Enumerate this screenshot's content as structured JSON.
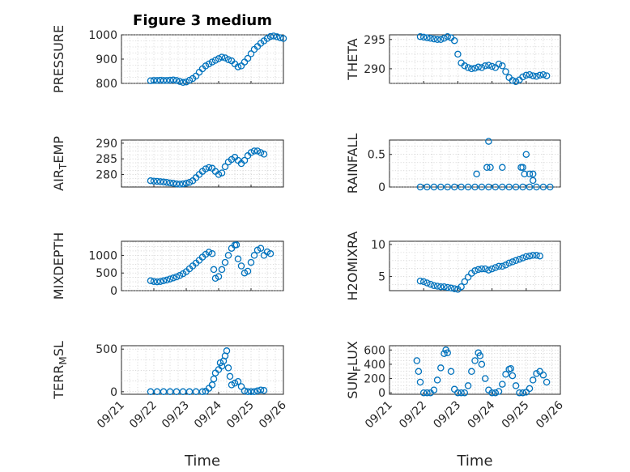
{
  "chart_data": [
    {
      "type": "scatter",
      "panel": "PRESSURE",
      "title": "Figure 3 medium",
      "ylabel": "PRESSURE",
      "ylim": [
        800,
        1000
      ],
      "yticks": [
        800,
        900,
        1000
      ],
      "xlim": [
        "09/21",
        "09/26"
      ],
      "points": [
        [
          0.9,
          811
        ],
        [
          1.0,
          812
        ],
        [
          1.1,
          812
        ],
        [
          1.2,
          813
        ],
        [
          1.3,
          812
        ],
        [
          1.4,
          812
        ],
        [
          1.5,
          813
        ],
        [
          1.6,
          814
        ],
        [
          1.7,
          812
        ],
        [
          1.8,
          808
        ],
        [
          1.9,
          804
        ],
        [
          2.0,
          806
        ],
        [
          2.1,
          813
        ],
        [
          2.2,
          820
        ],
        [
          2.3,
          830
        ],
        [
          2.4,
          846
        ],
        [
          2.5,
          860
        ],
        [
          2.6,
          872
        ],
        [
          2.7,
          880
        ],
        [
          2.8,
          888
        ],
        [
          2.9,
          895
        ],
        [
          3.0,
          902
        ],
        [
          3.1,
          908
        ],
        [
          3.2,
          905
        ],
        [
          3.3,
          898
        ],
        [
          3.4,
          893
        ],
        [
          3.5,
          880
        ],
        [
          3.6,
          868
        ],
        [
          3.7,
          872
        ],
        [
          3.8,
          888
        ],
        [
          3.9,
          903
        ],
        [
          4.0,
          922
        ],
        [
          4.1,
          940
        ],
        [
          4.2,
          952
        ],
        [
          4.3,
          965
        ],
        [
          4.4,
          975
        ],
        [
          4.5,
          985
        ],
        [
          4.6,
          993
        ],
        [
          4.7,
          995
        ],
        [
          4.8,
          992
        ],
        [
          4.9,
          988
        ],
        [
          5.0,
          985
        ]
      ]
    },
    {
      "type": "scatter",
      "panel": "THETA",
      "ylabel": "THETA",
      "ylim": [
        287.5,
        295.8
      ],
      "yticks": [
        290,
        295
      ],
      "xlim": [
        "09/21",
        "09/26"
      ],
      "points": [
        [
          0.9,
          295.5
        ],
        [
          1.0,
          295.4
        ],
        [
          1.1,
          295.3
        ],
        [
          1.2,
          295.2
        ],
        [
          1.3,
          295.1
        ],
        [
          1.4,
          295.0
        ],
        [
          1.5,
          295.0
        ],
        [
          1.6,
          295.2
        ],
        [
          1.7,
          295.5
        ],
        [
          1.8,
          295.3
        ],
        [
          1.9,
          294.8
        ],
        [
          2.0,
          292.5
        ],
        [
          2.1,
          291.0
        ],
        [
          2.2,
          290.5
        ],
        [
          2.3,
          290.2
        ],
        [
          2.4,
          290.0
        ],
        [
          2.5,
          290.1
        ],
        [
          2.6,
          290.3
        ],
        [
          2.7,
          290.2
        ],
        [
          2.8,
          290.5
        ],
        [
          2.9,
          290.6
        ],
        [
          3.0,
          290.4
        ],
        [
          3.1,
          290.2
        ],
        [
          3.2,
          290.8
        ],
        [
          3.3,
          290.5
        ],
        [
          3.4,
          289.5
        ],
        [
          3.5,
          288.5
        ],
        [
          3.6,
          288.0
        ],
        [
          3.7,
          287.8
        ],
        [
          3.8,
          288.1
        ],
        [
          3.9,
          288.6
        ],
        [
          4.0,
          288.9
        ],
        [
          4.1,
          289.0
        ],
        [
          4.2,
          288.8
        ],
        [
          4.3,
          288.7
        ],
        [
          4.4,
          288.9
        ],
        [
          4.5,
          289.0
        ],
        [
          4.6,
          288.8
        ]
      ]
    },
    {
      "type": "scatter",
      "panel": "AIR_TEMP",
      "ylabel": "AIR_TEMP",
      "ylim": [
        276,
        291
      ],
      "yticks": [
        280,
        285,
        290
      ],
      "xlim": [
        "09/21",
        "09/26"
      ],
      "points": [
        [
          0.9,
          278.0
        ],
        [
          1.0,
          277.9
        ],
        [
          1.1,
          277.8
        ],
        [
          1.2,
          277.7
        ],
        [
          1.3,
          277.6
        ],
        [
          1.4,
          277.5
        ],
        [
          1.5,
          277.3
        ],
        [
          1.6,
          277.2
        ],
        [
          1.7,
          277.0
        ],
        [
          1.8,
          276.9
        ],
        [
          1.9,
          277.0
        ],
        [
          2.0,
          277.2
        ],
        [
          2.1,
          277.5
        ],
        [
          2.2,
          278.0
        ],
        [
          2.3,
          279.0
        ],
        [
          2.4,
          280.0
        ],
        [
          2.5,
          281.0
        ],
        [
          2.6,
          281.8
        ],
        [
          2.7,
          282.2
        ],
        [
          2.8,
          282.0
        ],
        [
          2.9,
          281.0
        ],
        [
          3.0,
          280.0
        ],
        [
          3.1,
          280.5
        ],
        [
          3.2,
          282.5
        ],
        [
          3.3,
          284.0
        ],
        [
          3.4,
          284.8
        ],
        [
          3.5,
          285.5
        ],
        [
          3.6,
          284.5
        ],
        [
          3.7,
          283.5
        ],
        [
          3.8,
          284.5
        ],
        [
          3.9,
          286.0
        ],
        [
          4.0,
          287.0
        ],
        [
          4.1,
          287.5
        ],
        [
          4.2,
          287.5
        ],
        [
          4.3,
          287.0
        ],
        [
          4.4,
          286.5
        ]
      ]
    },
    {
      "type": "scatter",
      "panel": "RAINFALL",
      "ylabel": "RAINFALL",
      "ylim": [
        0,
        0.72
      ],
      "yticks": [
        0,
        0.5
      ],
      "xlim": [
        "09/21",
        "09/26"
      ],
      "points": [
        [
          0.9,
          0
        ],
        [
          1.1,
          0
        ],
        [
          1.3,
          0
        ],
        [
          1.5,
          0
        ],
        [
          1.7,
          0
        ],
        [
          1.9,
          0
        ],
        [
          2.1,
          0
        ],
        [
          2.3,
          0
        ],
        [
          2.5,
          0
        ],
        [
          2.7,
          0
        ],
        [
          2.9,
          0
        ],
        [
          3.1,
          0
        ],
        [
          3.3,
          0
        ],
        [
          3.5,
          0
        ],
        [
          3.7,
          0
        ],
        [
          3.9,
          0
        ],
        [
          4.1,
          0
        ],
        [
          4.3,
          0
        ],
        [
          4.5,
          0
        ],
        [
          4.7,
          0
        ],
        [
          2.55,
          0.2
        ],
        [
          2.85,
          0.3
        ],
        [
          2.9,
          0.7
        ],
        [
          2.95,
          0.3
        ],
        [
          3.3,
          0.3
        ],
        [
          3.85,
          0.3
        ],
        [
          3.9,
          0.3
        ],
        [
          4.0,
          0.5
        ],
        [
          4.1,
          0.2
        ],
        [
          3.95,
          0.2
        ],
        [
          4.2,
          0.2
        ],
        [
          4.2,
          0.1
        ]
      ]
    },
    {
      "type": "scatter",
      "panel": "MIXDEPTH",
      "ylabel": "MIXDEPTH",
      "ylim": [
        0,
        1400
      ],
      "yticks": [
        0,
        500,
        1000
      ],
      "xlim": [
        "09/21",
        "09/26"
      ],
      "points": [
        [
          0.9,
          280
        ],
        [
          1.0,
          260
        ],
        [
          1.1,
          250
        ],
        [
          1.2,
          260
        ],
        [
          1.3,
          280
        ],
        [
          1.4,
          300
        ],
        [
          1.5,
          330
        ],
        [
          1.6,
          360
        ],
        [
          1.7,
          390
        ],
        [
          1.8,
          430
        ],
        [
          1.9,
          480
        ],
        [
          2.0,
          540
        ],
        [
          2.1,
          620
        ],
        [
          2.2,
          700
        ],
        [
          2.3,
          780
        ],
        [
          2.4,
          860
        ],
        [
          2.5,
          950
        ],
        [
          2.6,
          1030
        ],
        [
          2.7,
          1090
        ],
        [
          2.8,
          1050
        ],
        [
          2.85,
          600
        ],
        [
          2.9,
          350
        ],
        [
          3.0,
          400
        ],
        [
          3.1,
          600
        ],
        [
          3.2,
          800
        ],
        [
          3.3,
          1000
        ],
        [
          3.4,
          1200
        ],
        [
          3.5,
          1290
        ],
        [
          3.55,
          1300
        ],
        [
          3.6,
          900
        ],
        [
          3.7,
          700
        ],
        [
          3.8,
          500
        ],
        [
          3.9,
          550
        ],
        [
          4.0,
          800
        ],
        [
          4.1,
          1000
        ],
        [
          4.2,
          1150
        ],
        [
          4.3,
          1200
        ],
        [
          4.4,
          1000
        ],
        [
          4.5,
          1100
        ],
        [
          4.6,
          1050
        ]
      ]
    },
    {
      "type": "scatter",
      "panel": "H2OMIXRA",
      "ylabel": "H2OMIXRA",
      "ylim": [
        2.8,
        10.5
      ],
      "yticks": [
        5,
        10
      ],
      "xlim": [
        "09/21",
        "09/26"
      ],
      "points": [
        [
          0.9,
          4.3
        ],
        [
          1.0,
          4.2
        ],
        [
          1.1,
          4.0
        ],
        [
          1.2,
          3.8
        ],
        [
          1.3,
          3.6
        ],
        [
          1.4,
          3.5
        ],
        [
          1.5,
          3.4
        ],
        [
          1.6,
          3.4
        ],
        [
          1.7,
          3.3
        ],
        [
          1.8,
          3.2
        ],
        [
          1.9,
          3.1
        ],
        [
          2.0,
          3.0
        ],
        [
          2.1,
          3.4
        ],
        [
          2.2,
          4.2
        ],
        [
          2.3,
          4.9
        ],
        [
          2.4,
          5.5
        ],
        [
          2.5,
          5.9
        ],
        [
          2.6,
          6.1
        ],
        [
          2.7,
          6.2
        ],
        [
          2.8,
          6.2
        ],
        [
          2.9,
          6.0
        ],
        [
          3.0,
          6.2
        ],
        [
          3.1,
          6.4
        ],
        [
          3.2,
          6.6
        ],
        [
          3.3,
          6.6
        ],
        [
          3.4,
          6.8
        ],
        [
          3.5,
          7.1
        ],
        [
          3.6,
          7.3
        ],
        [
          3.7,
          7.5
        ],
        [
          3.8,
          7.7
        ],
        [
          3.9,
          7.9
        ],
        [
          4.0,
          8.1
        ],
        [
          4.1,
          8.2
        ],
        [
          4.2,
          8.3
        ],
        [
          4.3,
          8.3
        ],
        [
          4.4,
          8.2
        ]
      ]
    },
    {
      "type": "scatter",
      "panel": "TERR_MSL",
      "ylabel": "TERR_MSL",
      "ylim": [
        -30,
        540
      ],
      "yticks": [
        0,
        500
      ],
      "xlim": [
        "09/21",
        "09/26"
      ],
      "points": [
        [
          0.9,
          0
        ],
        [
          1.1,
          0
        ],
        [
          1.3,
          0
        ],
        [
          1.5,
          0
        ],
        [
          1.7,
          0
        ],
        [
          1.9,
          0
        ],
        [
          2.1,
          0
        ],
        [
          2.3,
          0
        ],
        [
          2.5,
          0
        ],
        [
          2.6,
          5
        ],
        [
          2.7,
          40
        ],
        [
          2.8,
          80
        ],
        [
          2.85,
          150
        ],
        [
          2.9,
          220
        ],
        [
          3.0,
          260
        ],
        [
          3.05,
          340
        ],
        [
          3.1,
          300
        ],
        [
          3.15,
          360
        ],
        [
          3.2,
          420
        ],
        [
          3.25,
          480
        ],
        [
          3.3,
          280
        ],
        [
          3.35,
          180
        ],
        [
          3.4,
          80
        ],
        [
          3.5,
          100
        ],
        [
          3.6,
          120
        ],
        [
          3.7,
          60
        ],
        [
          3.8,
          10
        ],
        [
          3.9,
          0
        ],
        [
          4.0,
          0
        ],
        [
          4.1,
          0
        ],
        [
          4.2,
          10
        ],
        [
          4.3,
          20
        ],
        [
          4.4,
          15
        ]
      ]
    },
    {
      "type": "scatter",
      "panel": "SUN_FLUX",
      "ylabel": "SUN_FLUX",
      "ylim": [
        -20,
        660
      ],
      "yticks": [
        0,
        200,
        400,
        600
      ],
      "xlim": [
        "09/21",
        "09/26"
      ],
      "xticks": [
        "09/21",
        "09/22",
        "09/23",
        "09/24",
        "09/25",
        "09/26"
      ],
      "xlabel": "Time",
      "points": [
        [
          0.8,
          450
        ],
        [
          0.85,
          300
        ],
        [
          0.9,
          150
        ],
        [
          1.0,
          0
        ],
        [
          1.1,
          0
        ],
        [
          1.2,
          0
        ],
        [
          1.3,
          40
        ],
        [
          1.4,
          180
        ],
        [
          1.5,
          350
        ],
        [
          1.6,
          550
        ],
        [
          1.65,
          600
        ],
        [
          1.7,
          560
        ],
        [
          1.8,
          300
        ],
        [
          1.9,
          50
        ],
        [
          2.0,
          0
        ],
        [
          2.1,
          0
        ],
        [
          2.2,
          0
        ],
        [
          2.3,
          100
        ],
        [
          2.4,
          300
        ],
        [
          2.5,
          450
        ],
        [
          2.6,
          560
        ],
        [
          2.65,
          520
        ],
        [
          2.7,
          400
        ],
        [
          2.8,
          200
        ],
        [
          2.9,
          40
        ],
        [
          3.0,
          0
        ],
        [
          3.1,
          0
        ],
        [
          3.2,
          20
        ],
        [
          3.3,
          120
        ],
        [
          3.4,
          260
        ],
        [
          3.5,
          330
        ],
        [
          3.55,
          340
        ],
        [
          3.6,
          240
        ],
        [
          3.7,
          100
        ],
        [
          3.8,
          0
        ],
        [
          3.9,
          0
        ],
        [
          4.0,
          10
        ],
        [
          4.1,
          60
        ],
        [
          4.2,
          180
        ],
        [
          4.3,
          270
        ],
        [
          4.4,
          300
        ],
        [
          4.5,
          250
        ],
        [
          4.6,
          150
        ]
      ]
    }
  ]
}
